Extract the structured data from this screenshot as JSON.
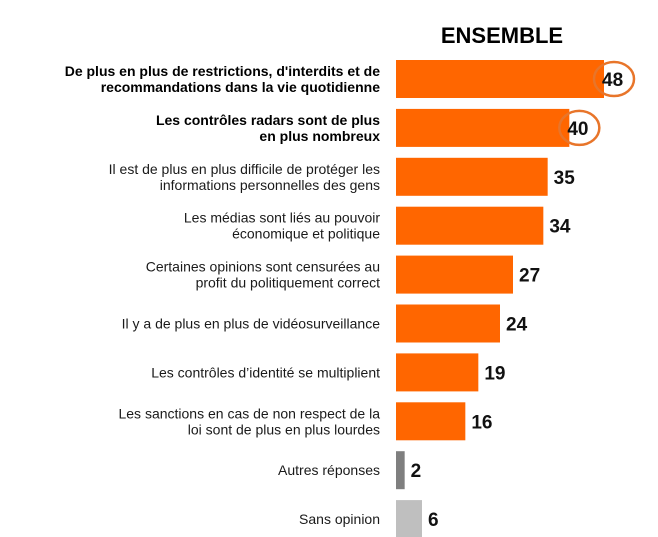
{
  "chart_data": {
    "type": "bar",
    "orientation": "horizontal",
    "title": "ENSEMBLE",
    "categories": [
      [
        "De plus en plus de restrictions, d'interdits et de",
        "recommandations dans la vie quotidienne"
      ],
      [
        "Les contrôles radars sont de plus",
        "en plus nombreux"
      ],
      [
        "Il est de plus en plus difficile de protéger les",
        "informations personnelles des gens"
      ],
      [
        "Les médias sont liés au pouvoir",
        "économique et politique"
      ],
      [
        "Certaines opinions sont censurées au",
        "profit du politiquement correct"
      ],
      [
        "Il y a de plus en plus de vidéosurveillance"
      ],
      [
        "Les contrôles d’identité se multiplient"
      ],
      [
        "Les sanctions en cas de non respect de la",
        "loi sont de plus en plus lourdes"
      ],
      [
        "Autres réponses"
      ],
      [
        "Sans opinion"
      ]
    ],
    "values": [
      48,
      40,
      35,
      34,
      27,
      24,
      19,
      16,
      2,
      6
    ],
    "highlighted": [
      0,
      1
    ],
    "bold_labels": [
      0,
      1
    ],
    "colors": {
      "main": "#ff6600",
      "other": "#7f7f7f",
      "no_opinion": "#bfbfbf",
      "circle": "#e8752a"
    },
    "bar_colors": [
      "main",
      "main",
      "main",
      "main",
      "main",
      "main",
      "main",
      "main",
      "other",
      "no_opinion"
    ],
    "xlim": [
      0,
      48
    ]
  }
}
